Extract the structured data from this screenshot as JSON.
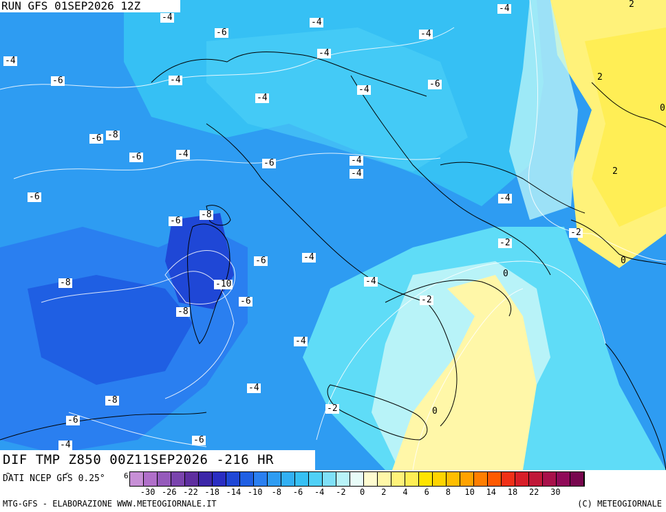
{
  "header": {
    "run_title": "RUN GFS 01SEP2026 12Z",
    "variable_title": "DIF TMP Z850 00Z11SEP2026 -216 HR"
  },
  "source_label": "DATI NCEP GFS 0.25°",
  "footer": {
    "left": "MTG-GFS - ELABORAZIONE WWW.METEOGIORNALE.IT",
    "right": "(C) METEOGIORNALE"
  },
  "colors": {
    "deep_blue": "#1f47d6",
    "blue": "#2a7ff0",
    "mid_blue": "#2e9cf2",
    "light_blue": "#36c0f4",
    "cyan": "#5fdcf7",
    "pale_cyan": "#b8f3f8",
    "pale_yellow": "#fff7a8",
    "yellow": "#ffee55",
    "deep_yellow": "#ffe400"
  },
  "scale": {
    "colors": [
      "#c78fd6",
      "#b06fc9",
      "#955abb",
      "#7a44ad",
      "#5e2e9f",
      "#3c26a8",
      "#2a2dc2",
      "#1f47d6",
      "#1f5fe3",
      "#2a7ff0",
      "#2e9cf2",
      "#32b0f4",
      "#36c0f4",
      "#4fd0f6",
      "#7fe0f8",
      "#b8f3f8",
      "#e8fcf8",
      "#fffcd0",
      "#fff7a8",
      "#fff27a",
      "#ffee55",
      "#ffe400",
      "#ffd400",
      "#ffbe00",
      "#ffa200",
      "#ff7e00",
      "#ff5a00",
      "#f03018",
      "#d81e28",
      "#c01838",
      "#a8104a",
      "#900a58",
      "#78064e"
    ],
    "ticks": [
      "-30",
      "-26",
      "-22",
      "-18",
      "-14",
      "-10",
      "-8",
      "-6",
      "-4",
      "-2",
      "0",
      "2",
      "4",
      "6",
      "8",
      "10",
      "14",
      "18",
      "22",
      "30"
    ],
    "edge_labels": [
      "-2",
      "6",
      "6"
    ]
  },
  "contour_labels": [
    {
      "text": "-4"
    },
    {
      "text": "-4"
    },
    {
      "text": "-6"
    },
    {
      "text": "-4"
    },
    {
      "text": "-4"
    },
    {
      "text": "-4"
    },
    {
      "text": "-6"
    },
    {
      "text": "-4"
    },
    {
      "text": "-4"
    },
    {
      "text": "-6"
    },
    {
      "text": "-4"
    },
    {
      "text": "-6"
    },
    {
      "text": "-8"
    },
    {
      "text": "-6"
    },
    {
      "text": "-4"
    },
    {
      "text": "-6"
    },
    {
      "text": "-4"
    },
    {
      "text": "-4"
    },
    {
      "text": "-6"
    },
    {
      "text": "-4"
    },
    {
      "text": "-4"
    },
    {
      "text": "-6"
    },
    {
      "text": "-8"
    },
    {
      "text": "-2"
    },
    {
      "text": "-2"
    },
    {
      "text": "-6"
    },
    {
      "text": "-4"
    },
    {
      "text": "-8"
    },
    {
      "text": "-10"
    },
    {
      "text": "-4"
    },
    {
      "text": "-6"
    },
    {
      "text": "-8"
    },
    {
      "text": "-2"
    },
    {
      "text": "-4"
    },
    {
      "text": "-4"
    },
    {
      "text": "-2"
    },
    {
      "text": "-8"
    },
    {
      "text": "-6"
    },
    {
      "text": "-4"
    },
    {
      "text": "-6"
    }
  ],
  "plain_labels": [
    {
      "text": "2"
    },
    {
      "text": "2"
    },
    {
      "text": "0"
    },
    {
      "text": "2"
    },
    {
      "text": "0"
    },
    {
      "text": "0"
    },
    {
      "text": "0"
    }
  ]
}
